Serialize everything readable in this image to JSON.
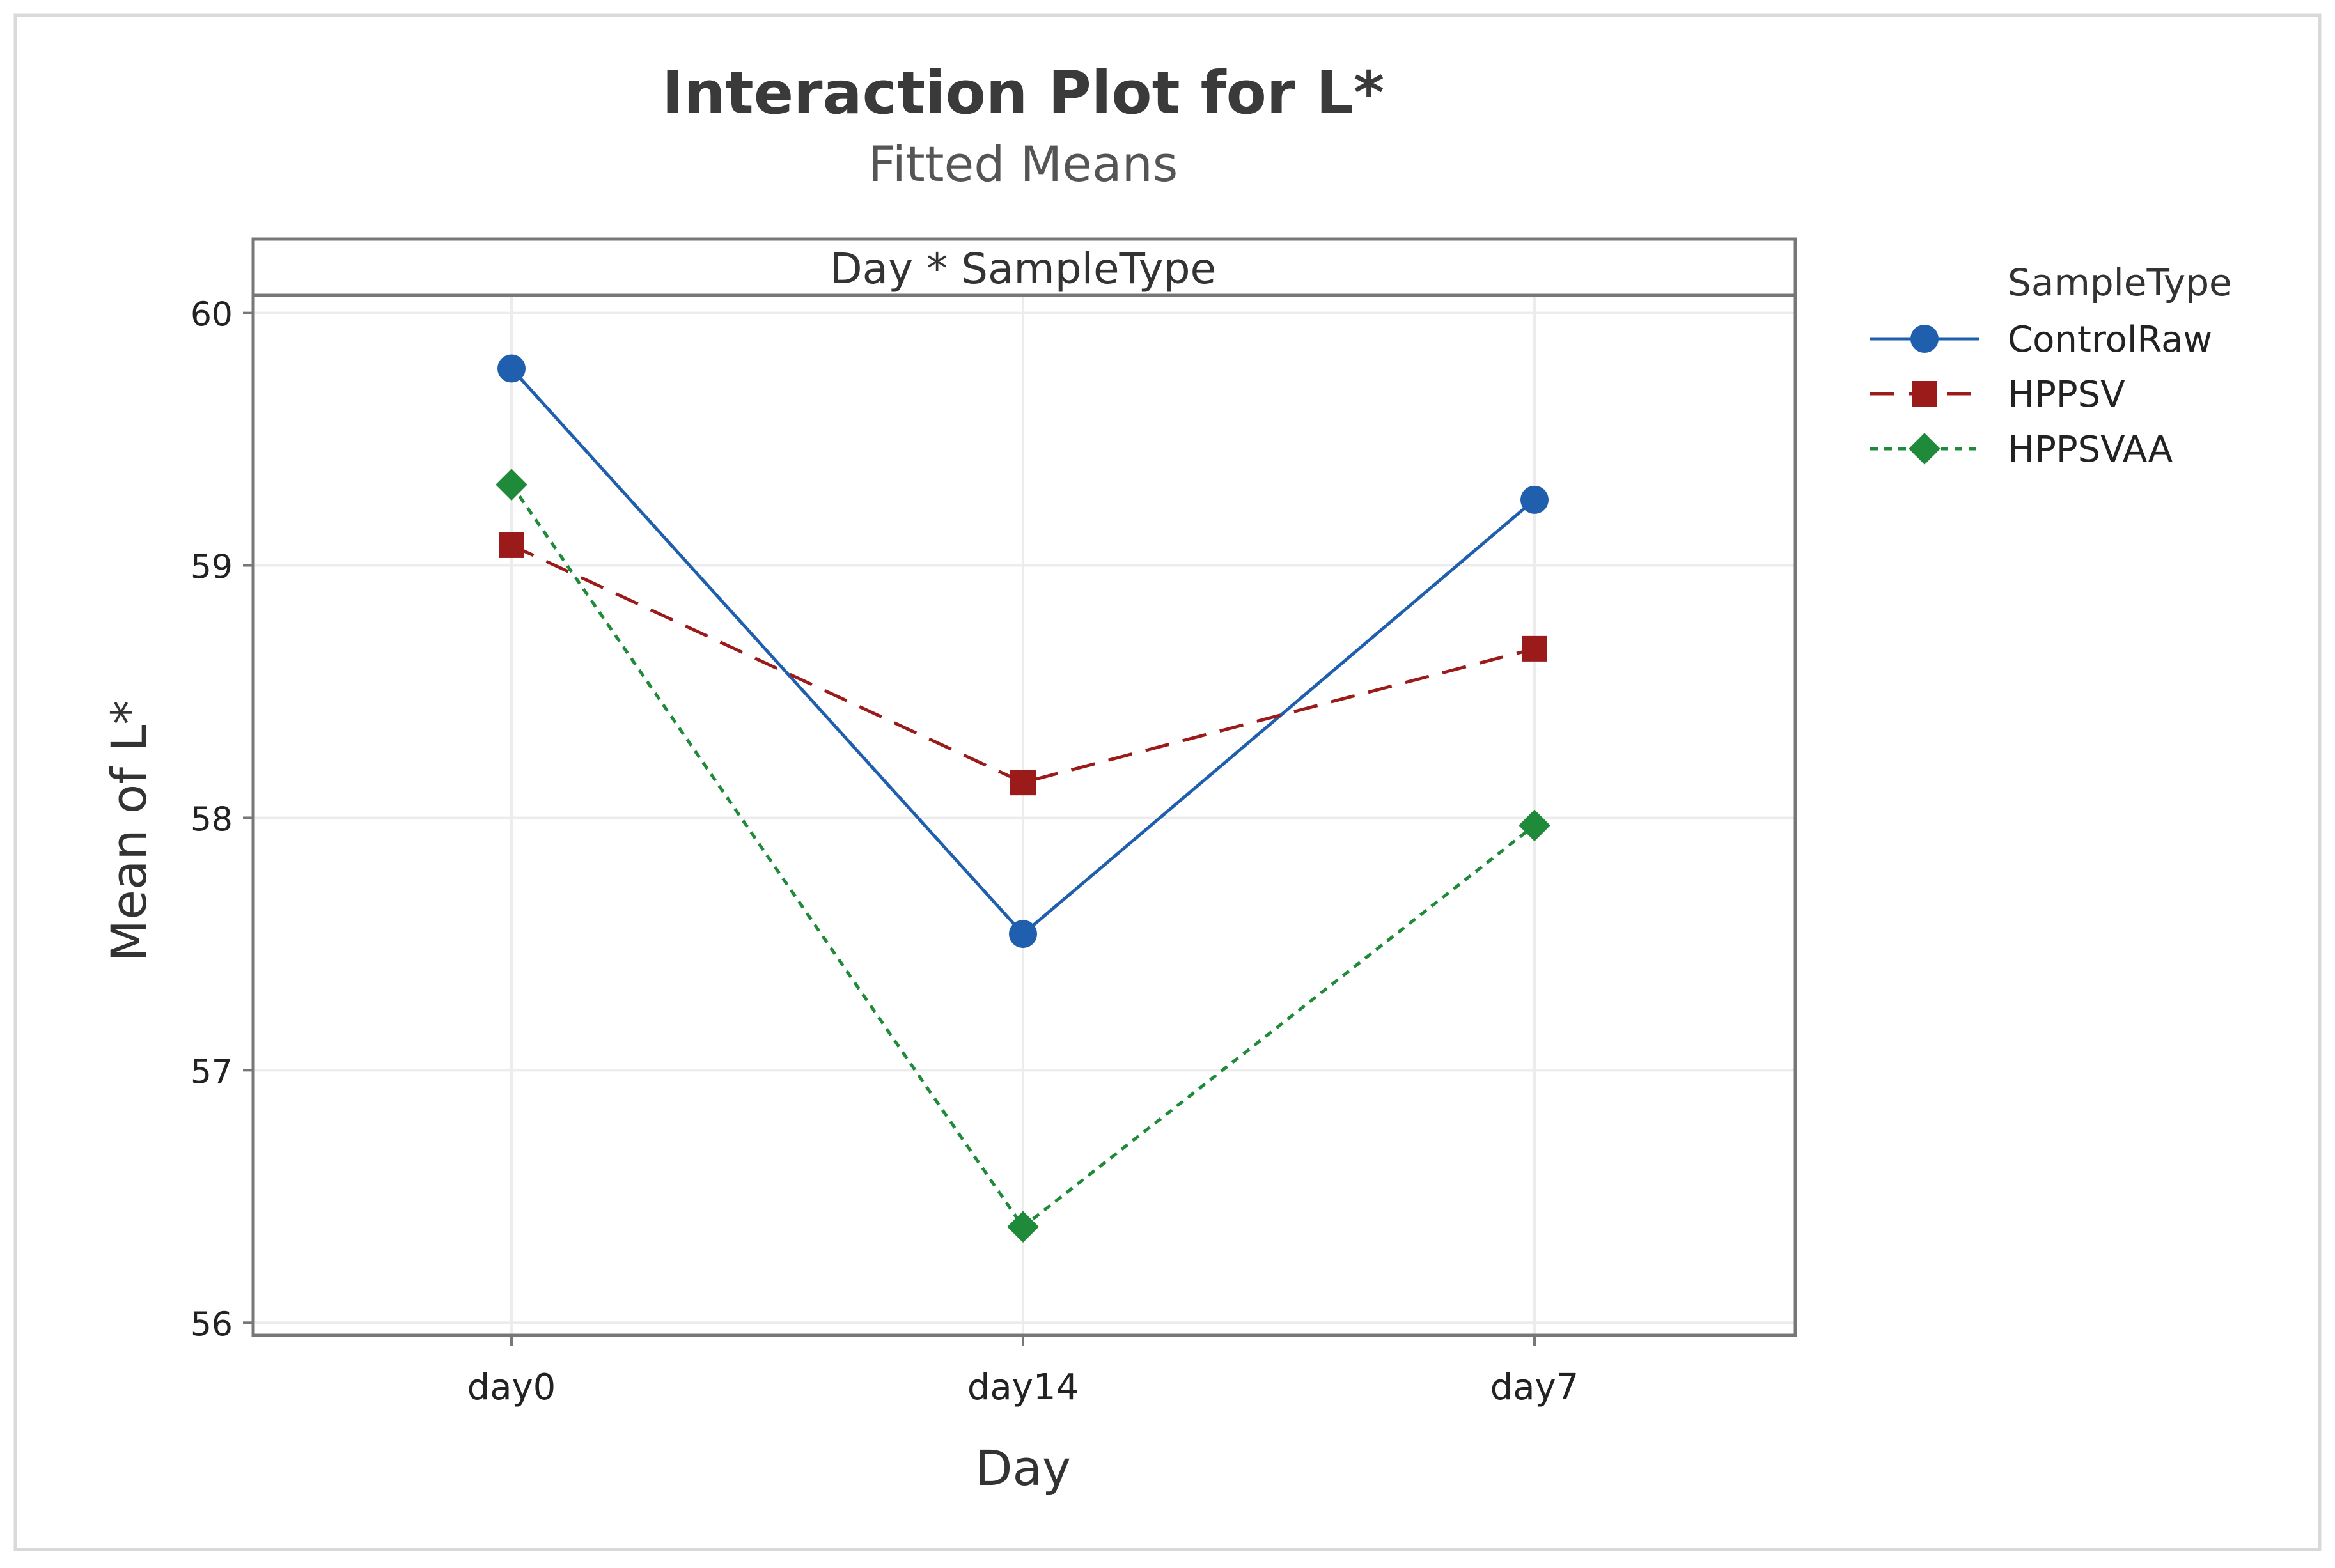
{
  "chart_data": {
    "type": "line",
    "title": "Interaction Plot for L*",
    "subtitle": "Fitted Means",
    "panel_label": "Day * SampleType",
    "xlabel": "Day",
    "ylabel": "Mean of L*",
    "categories": [
      "day0",
      "day14",
      "day7"
    ],
    "ylim": [
      55.95,
      60.07
    ],
    "yticks": [
      56,
      57,
      58,
      59,
      60
    ],
    "grid": true,
    "legend": {
      "title": "SampleType",
      "placement": "right"
    },
    "series": [
      {
        "name": "ControlRaw",
        "values": [
          59.78,
          57.54,
          59.26
        ],
        "color": "#1f5fae",
        "marker": "circle",
        "line_style": "solid"
      },
      {
        "name": "HPPSV",
        "values": [
          59.08,
          58.14,
          58.67
        ],
        "color": "#9b1b1b",
        "marker": "square",
        "line_style": "dashed"
      },
      {
        "name": "HPPSVAA",
        "values": [
          59.32,
          56.38,
          57.97
        ],
        "color": "#1f8a3a",
        "marker": "diamond",
        "line_style": "dotted"
      }
    ]
  }
}
